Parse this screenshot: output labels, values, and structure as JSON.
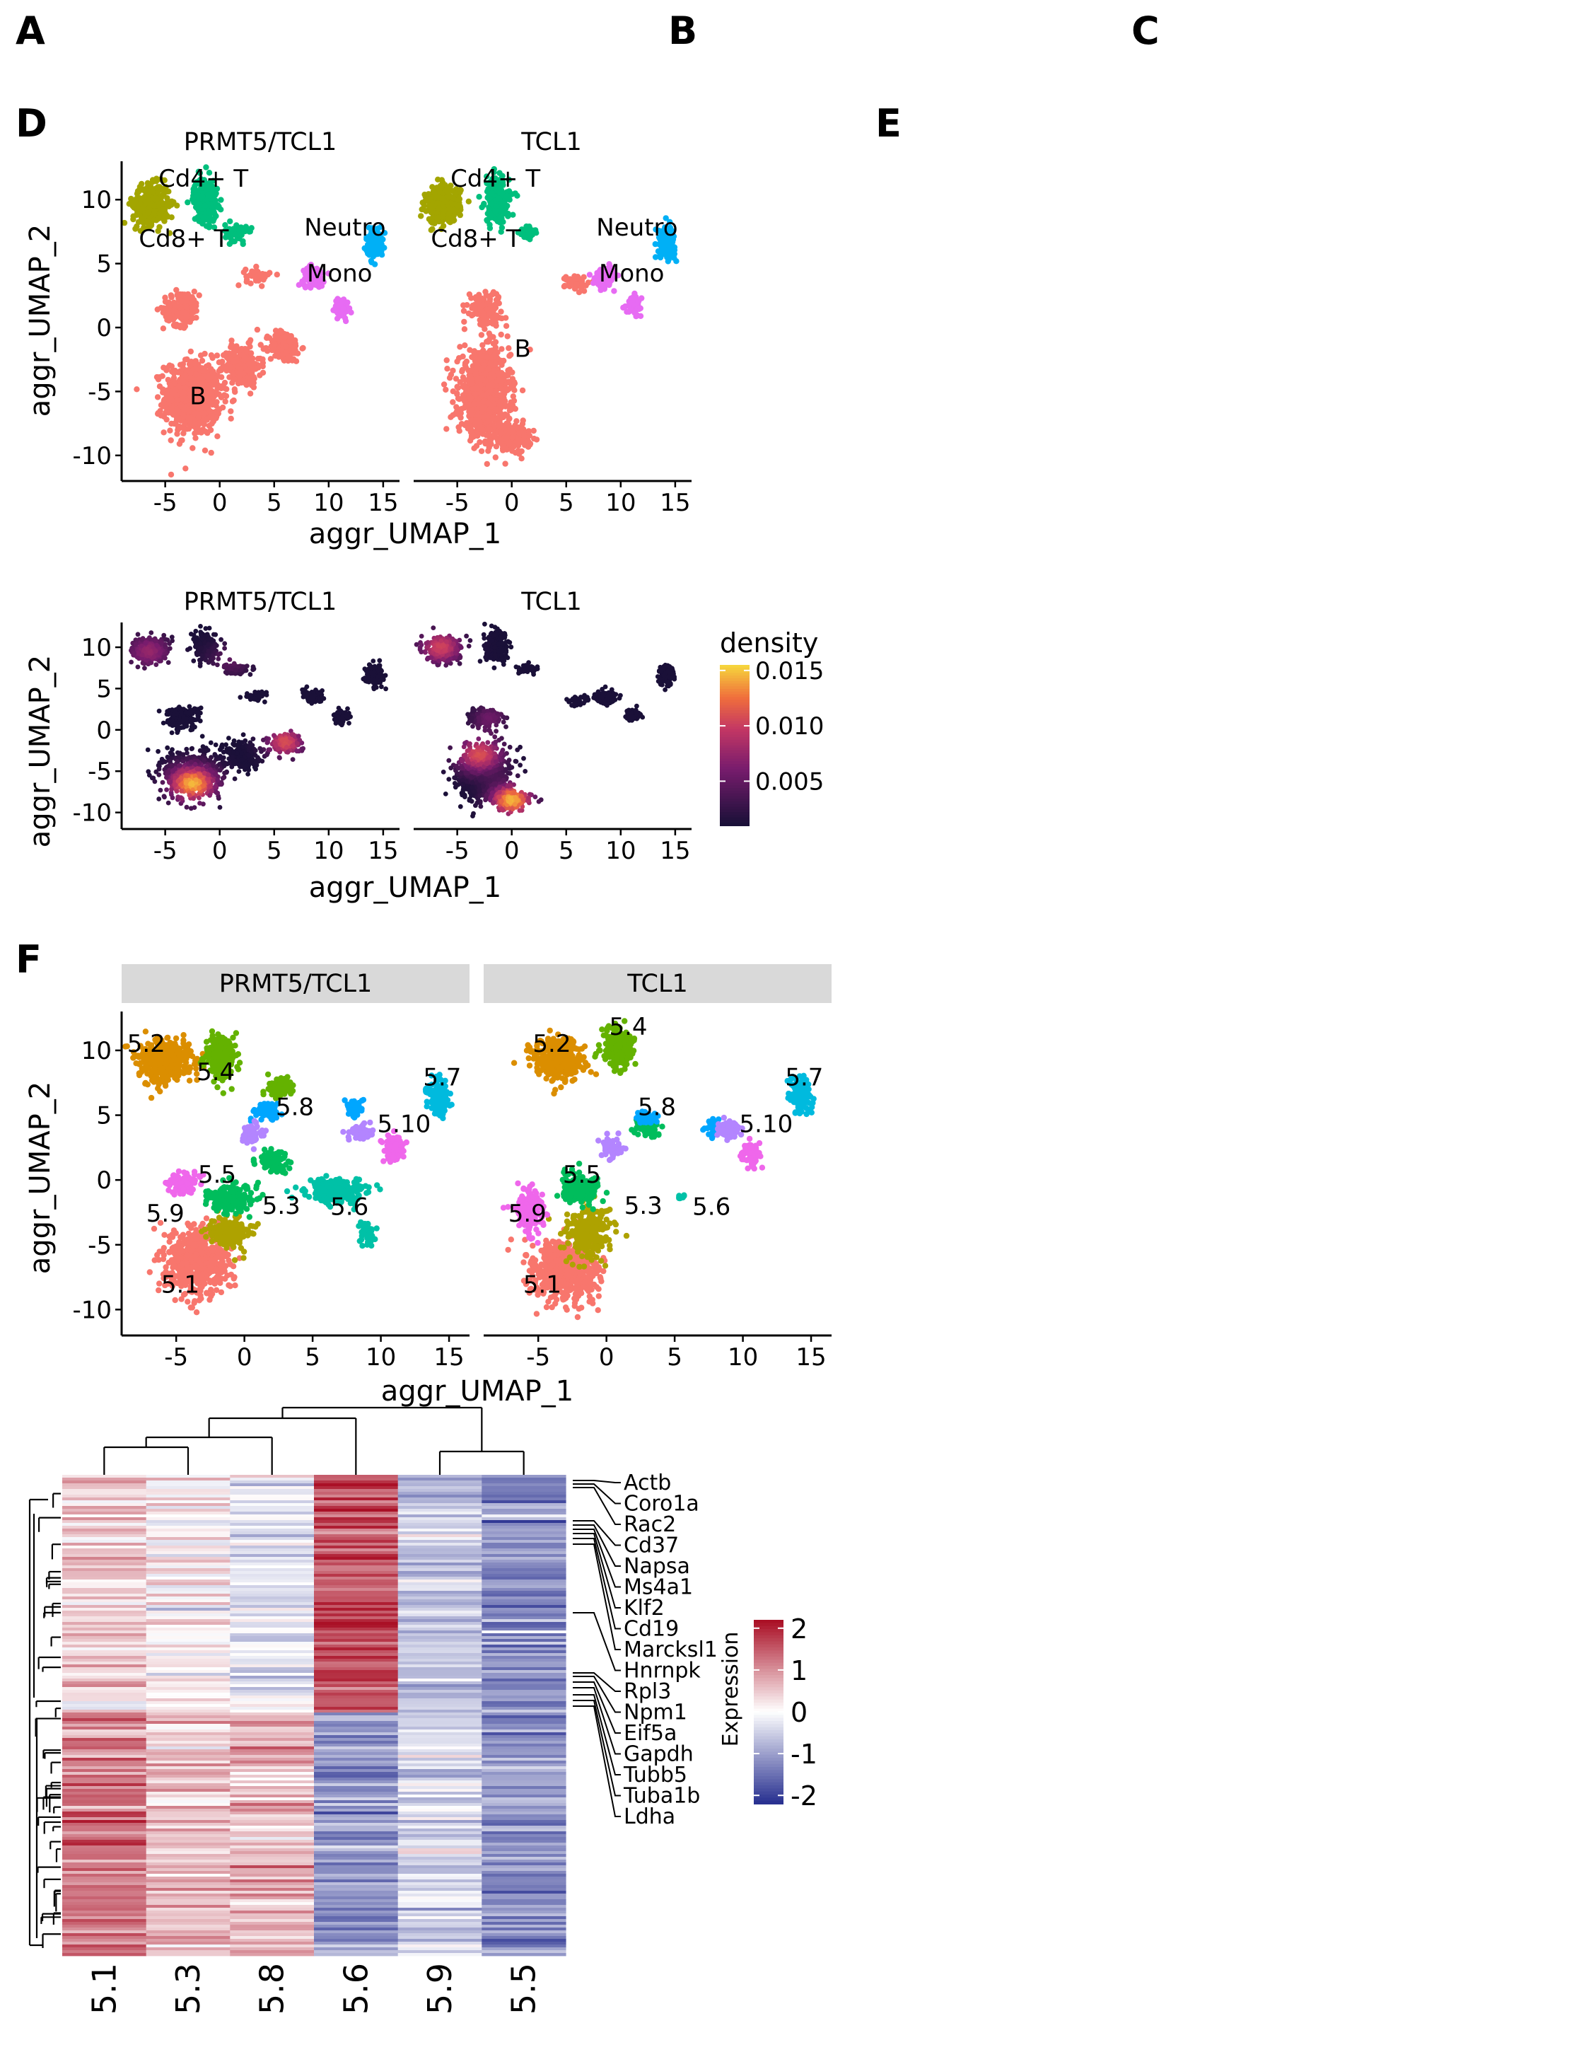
{
  "panel_labels": [
    "A",
    "B",
    "C",
    "D",
    "E",
    "F"
  ],
  "colors": {
    "B": "#F8766D",
    "Cd8+ T": "#A3A500",
    "Cd4+ T": "#00BF7D",
    "Neutro": "#00B0F6",
    "Mono": "#E76BF3",
    "5.1": "#F8766D",
    "5.2": "#DB8E00",
    "5.3": "#AEA200",
    "5.4": "#64B200",
    "5.5": "#00BD5C",
    "5.6": "#00C1A7",
    "5.7": "#00BADE",
    "5.8": "#00A6FF",
    "5.9": "#B385FF",
    "5.10": "#EF67EB"
  },
  "umap_celltype": {
    "xlabel": "aggr_UMAP_1",
    "ylabel": "aggr_UMAP_2",
    "xticks": [
      "-5",
      "0",
      "5",
      "10",
      "15"
    ],
    "yticks": [
      "10",
      "5",
      "0",
      "-5",
      "-10"
    ],
    "facets": [
      {
        "title": "PRMT5/TCL1",
        "labels": [
          {
            "text": "Cd4+ T",
            "x": -1.5,
            "y": 11.0
          },
          {
            "text": "Neutro",
            "x": 11.5,
            "y": 7.2
          },
          {
            "text": "Cd8+ T",
            "x": -3.3,
            "y": 6.3
          },
          {
            "text": "Mono",
            "x": 11.0,
            "y": 3.6
          },
          {
            "text": "B",
            "x": -2.0,
            "y": -6.0
          }
        ]
      },
      {
        "title": "TCL1",
        "labels": [
          {
            "text": "Cd4+ T",
            "x": -1.5,
            "y": 11.0
          },
          {
            "text": "Neutro",
            "x": 11.5,
            "y": 7.2
          },
          {
            "text": "Cd8+ T",
            "x": -3.3,
            "y": 6.3
          },
          {
            "text": "Mono",
            "x": 11.0,
            "y": 3.6
          },
          {
            "text": "B",
            "x": 1.0,
            "y": -2.3
          }
        ]
      }
    ]
  },
  "umap_density": {
    "xlabel": "aggr_UMAP_1",
    "ylabel": "aggr_UMAP_2",
    "xticks": [
      "-5",
      "0",
      "5",
      "10",
      "15"
    ],
    "yticks": [
      "10",
      "5",
      "0",
      "-5",
      "-10"
    ],
    "facets": [
      {
        "title": "PRMT5/TCL1"
      },
      {
        "title": "TCL1"
      }
    ],
    "legend": {
      "title": "density",
      "ticks": [
        "0.015",
        "0.010",
        "0.005"
      ],
      "range": [
        0.001,
        0.0155
      ]
    }
  },
  "umap_clusters": {
    "xlabel": "aggr_UMAP_1",
    "ylabel": "aggr_UMAP_2",
    "xticks": [
      "-5",
      "0",
      "5",
      "10",
      "15"
    ],
    "yticks": [
      "10",
      "5",
      "0",
      "-5",
      "-10"
    ],
    "facets": [
      {
        "title": "PRMT5/TCL1",
        "labels": [
          {
            "text": "5.2",
            "x": -7.2,
            "y": 9.9
          },
          {
            "text": "5.4",
            "x": -2.1,
            "y": 7.7
          },
          {
            "text": "5.7",
            "x": 14.5,
            "y": 7.3
          },
          {
            "text": "5.8",
            "x": 3.7,
            "y": 5.0
          },
          {
            "text": "5.10",
            "x": 11.7,
            "y": 3.7
          },
          {
            "text": "5.5",
            "x": -2.0,
            "y": -0.2
          },
          {
            "text": "5.3",
            "x": 2.7,
            "y": -2.6
          },
          {
            "text": "5.6",
            "x": 7.7,
            "y": -2.7
          },
          {
            "text": "5.9",
            "x": -5.8,
            "y": -3.2
          },
          {
            "text": "5.1",
            "x": -4.7,
            "y": -8.7
          }
        ]
      },
      {
        "title": "TCL1",
        "labels": [
          {
            "text": "5.2",
            "x": -4.0,
            "y": 9.9
          },
          {
            "text": "5.4",
            "x": 1.6,
            "y": 11.2
          },
          {
            "text": "5.7",
            "x": 14.5,
            "y": 7.3
          },
          {
            "text": "5.8",
            "x": 3.7,
            "y": 5.0
          },
          {
            "text": "5.10",
            "x": 11.7,
            "y": 3.7
          },
          {
            "text": "5.5",
            "x": -1.8,
            "y": -0.2
          },
          {
            "text": "5.3",
            "x": 2.7,
            "y": -2.6
          },
          {
            "text": "5.6",
            "x": 7.7,
            "y": -2.7
          },
          {
            "text": "5.9",
            "x": -5.8,
            "y": -3.2
          },
          {
            "text": "5.1",
            "x": -4.7,
            "y": -8.7
          }
        ]
      }
    ]
  },
  "heatmap": {
    "columns": [
      "5.1",
      "5.3",
      "5.8",
      "5.6",
      "5.9",
      "5.5"
    ],
    "genes": [
      "Actb",
      "Coro1a",
      "Rac2",
      "Cd37",
      "Napsa",
      "Ms4a1",
      "Klf2",
      "Cd19",
      "Marcksl1",
      "Hnrnpk",
      "Rpl3",
      "Npm1",
      "Eif5a",
      "Gapdh",
      "Tubb5",
      "Tuba1b",
      "Ldha"
    ],
    "legend": {
      "title": "Expression",
      "ticks": [
        "2",
        "1",
        "0",
        "-1",
        "-2"
      ],
      "range": [
        -2.2,
        2.2
      ]
    },
    "top_block_means": [
      0.45,
      0.1,
      -0.35,
      1.6,
      -0.6,
      -1.2
    ],
    "bottom_block_means": [
      1.25,
      0.6,
      0.7,
      -1.1,
      -0.5,
      -1.2
    ]
  }
}
